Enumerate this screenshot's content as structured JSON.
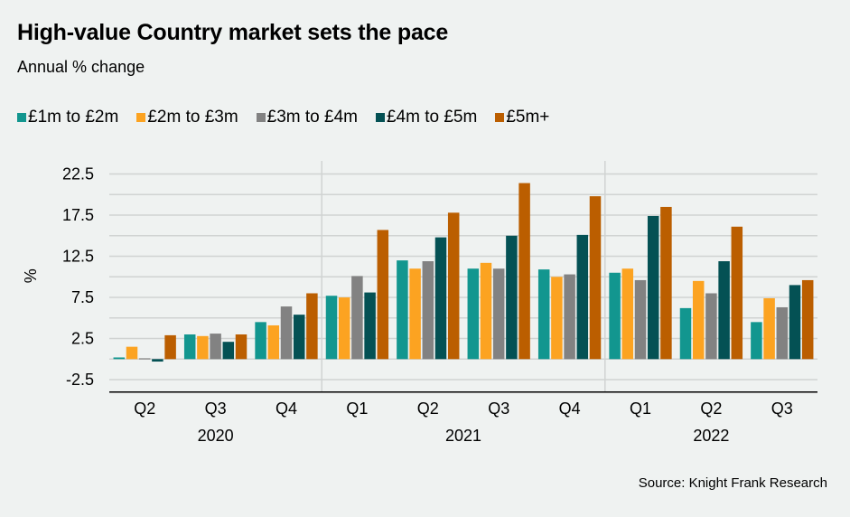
{
  "title": "High-value Country market sets the pace",
  "subtitle": "Annual % change",
  "source": "Source: Knight Frank Research",
  "chart_data": {
    "type": "bar",
    "title": "High-value Country market sets the pace",
    "subtitle": "Annual % change",
    "xlabel": "",
    "ylabel": "%",
    "ylim": [
      -4,
      24.5
    ],
    "yticks": [
      -2.5,
      2.5,
      7.5,
      12.5,
      17.5,
      22.5
    ],
    "ytick_labels": [
      "-2.5",
      "2.5",
      "7.5",
      "12.5",
      "17.5",
      "22.5"
    ],
    "gridlines_every": 2.5,
    "grid": true,
    "legend_position": "top-left",
    "categories": [
      "Q2",
      "Q3",
      "Q4",
      "Q1",
      "Q2",
      "Q3",
      "Q4",
      "Q1",
      "Q2",
      "Q3"
    ],
    "year_groups": [
      {
        "label": "2020",
        "start": 0,
        "end": 2
      },
      {
        "label": "2021",
        "start": 3,
        "end": 6
      },
      {
        "label": "2022",
        "start": 7,
        "end": 9
      }
    ],
    "series": [
      {
        "name": "£1m to £2m",
        "color": "#12968f",
        "values": [
          0.2,
          3.0,
          4.5,
          7.7,
          12.0,
          11.0,
          10.9,
          10.5,
          6.2,
          4.5
        ]
      },
      {
        "name": "£2m to £3m",
        "color": "#fca321",
        "values": [
          1.5,
          2.8,
          4.1,
          7.5,
          11.0,
          11.7,
          10.0,
          11.0,
          9.5,
          7.4
        ]
      },
      {
        "name": "£3m to £4m",
        "color": "#828282",
        "values": [
          0.1,
          3.1,
          6.4,
          10.1,
          11.9,
          11.0,
          10.3,
          9.6,
          8.0,
          6.3
        ]
      },
      {
        "name": "£4m to £5m",
        "color": "#045154",
        "values": [
          -0.3,
          2.1,
          5.4,
          8.1,
          14.8,
          15.0,
          15.1,
          17.4,
          11.9,
          9.0
        ]
      },
      {
        "name": "£5m+",
        "color": "#bb5e00",
        "values": [
          2.9,
          3.0,
          8.0,
          15.7,
          17.8,
          21.4,
          19.8,
          18.5,
          16.1,
          9.6
        ]
      }
    ]
  }
}
